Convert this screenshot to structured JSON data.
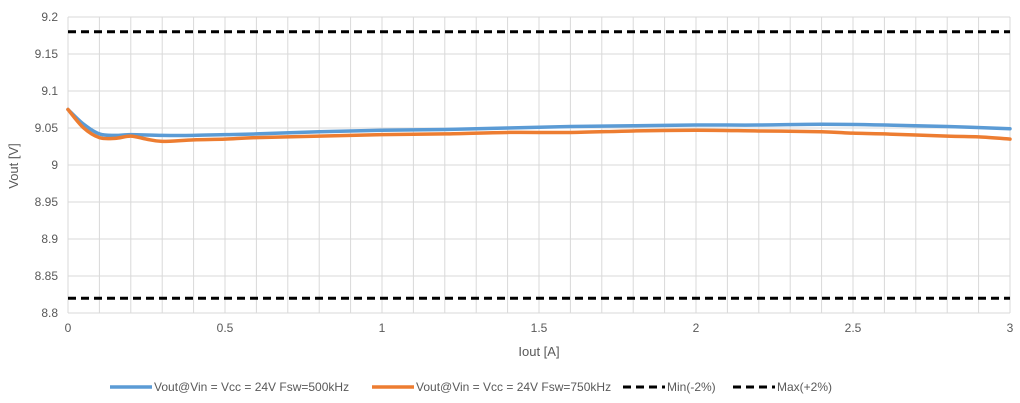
{
  "chart_data": {
    "type": "line",
    "title": "",
    "xlabel": "Iout [A]",
    "ylabel": "Vout [V]",
    "xlim": [
      0,
      3
    ],
    "ylim": [
      8.8,
      9.2
    ],
    "x_ticks": [
      "0",
      "0.5",
      "1",
      "1.5",
      "2",
      "2.5",
      "3"
    ],
    "y_ticks": [
      "8.8",
      "8.85",
      "8.9",
      "8.95",
      "9",
      "9.05",
      "9.1",
      "9.15",
      "9.2"
    ],
    "grid": "vertical and horizontal",
    "legend_position": "bottom",
    "series": [
      {
        "name": "Vout@Vin = Vcc = 24V Fsw=500kHz",
        "color": "#5B9BD5",
        "style": "solid",
        "x": [
          0,
          0.05,
          0.1,
          0.15,
          0.2,
          0.3,
          0.4,
          0.5,
          0.6,
          0.8,
          1.0,
          1.2,
          1.4,
          1.6,
          1.8,
          2.0,
          2.2,
          2.4,
          2.6,
          2.8,
          3.0
        ],
        "y": [
          9.075,
          9.055,
          9.042,
          9.04,
          9.041,
          9.04,
          9.04,
          9.041,
          9.042,
          9.045,
          9.047,
          9.048,
          9.05,
          9.052,
          9.053,
          9.054,
          9.054,
          9.055,
          9.054,
          9.052,
          9.049
        ]
      },
      {
        "name": "Vout@Vin = Vcc = 24V Fsw=750kHz",
        "color": "#ED7D31",
        "style": "solid",
        "x": [
          0,
          0.05,
          0.1,
          0.15,
          0.2,
          0.25,
          0.3,
          0.4,
          0.5,
          0.6,
          0.8,
          1.0,
          1.2,
          1.4,
          1.6,
          1.8,
          2.0,
          2.2,
          2.4,
          2.5,
          2.6,
          2.8,
          2.9,
          3.0
        ],
        "y": [
          9.075,
          9.05,
          9.037,
          9.036,
          9.039,
          9.035,
          9.032,
          9.034,
          9.035,
          9.037,
          9.039,
          9.041,
          9.042,
          9.044,
          9.044,
          9.046,
          9.047,
          9.046,
          9.045,
          9.043,
          9.042,
          9.039,
          9.038,
          9.035
        ]
      },
      {
        "name": "Min(-2%)",
        "color": "#000000",
        "style": "dashed",
        "x": [
          0,
          3
        ],
        "y": [
          8.82,
          8.82
        ]
      },
      {
        "name": "Max(+2%)",
        "color": "#000000",
        "style": "dashed",
        "x": [
          0,
          3
        ],
        "y": [
          9.18,
          9.18
        ]
      }
    ]
  }
}
